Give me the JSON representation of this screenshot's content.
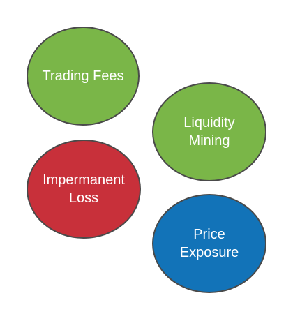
{
  "bubbles": [
    {
      "label": "Trading Fees",
      "color": "#7ab648"
    },
    {
      "label": "Liquidity\nMining",
      "color": "#7ab648"
    },
    {
      "label": "Impermanent\nLoss",
      "color": "#c8303a"
    },
    {
      "label": "Price\nExposure",
      "color": "#1273b8"
    }
  ]
}
